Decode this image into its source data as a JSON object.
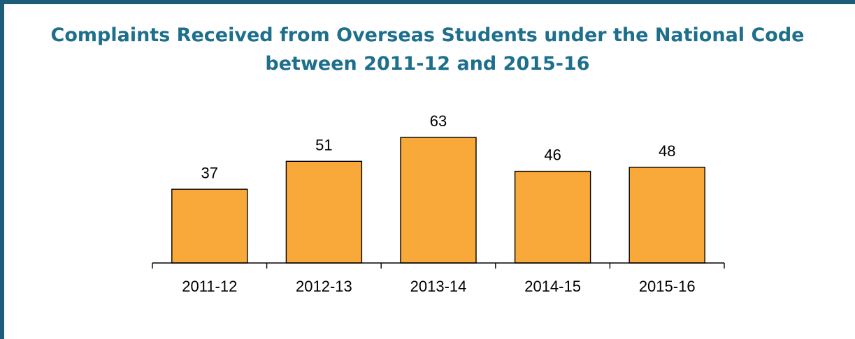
{
  "chart_data": {
    "type": "bar",
    "title_lines": [
      "Complaints Received from Overseas Students under the National Code",
      "between 2011-12 and 2015-16"
    ],
    "categories": [
      "2011-12",
      "2012-13",
      "2013-14",
      "2014-15",
      "2015-16"
    ],
    "values": [
      37,
      51,
      63,
      46,
      48
    ],
    "data_labels": true,
    "ylim": [
      0,
      63
    ],
    "grid": false,
    "legend": "none",
    "bar_color": "#f9a93a",
    "title_color": "#1d6f8c",
    "frame_color": "#1d5d7a"
  }
}
